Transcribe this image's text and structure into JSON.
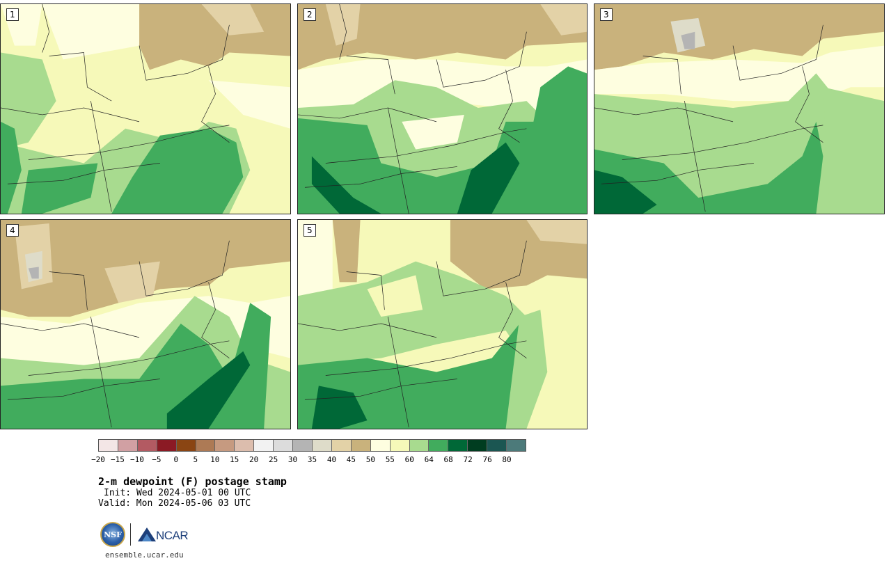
{
  "panels": [
    {
      "label": "1"
    },
    {
      "label": "2"
    },
    {
      "label": "3"
    },
    {
      "label": "4"
    },
    {
      "label": "5"
    }
  ],
  "colorbar": {
    "colors": [
      "#f3e6e6",
      "#d1a0a3",
      "#b35a62",
      "#8b1a24",
      "#8a4513",
      "#ad7a55",
      "#c69a80",
      "#dcbdad",
      "#f2f2f2",
      "#dcdcdc",
      "#b4b4b4",
      "#dedcc9",
      "#e3d2a7",
      "#c9b27c",
      "#fefee0",
      "#f6f9b9",
      "#a8db8f",
      "#41ac5d",
      "#006837",
      "#003d20",
      "#1b5652",
      "#4c7a7a"
    ],
    "ticks": [
      "−20",
      "−15",
      "−10",
      "−5",
      "0",
      "5",
      "10",
      "15",
      "20",
      "25",
      "30",
      "35",
      "40",
      "45",
      "50",
      "55",
      "60",
      "64",
      "68",
      "72",
      "76",
      "80"
    ]
  },
  "title": "2-m dewpoint (F) postage stamp",
  "init": "Init: Wed 2024-05-01 00 UTC",
  "valid": "Valid: Mon 2024-05-06 03 UTC",
  "logos": {
    "nsf": "NSF",
    "ncar": "NCAR"
  },
  "footer_url": "ensemble.ucar.edu"
}
